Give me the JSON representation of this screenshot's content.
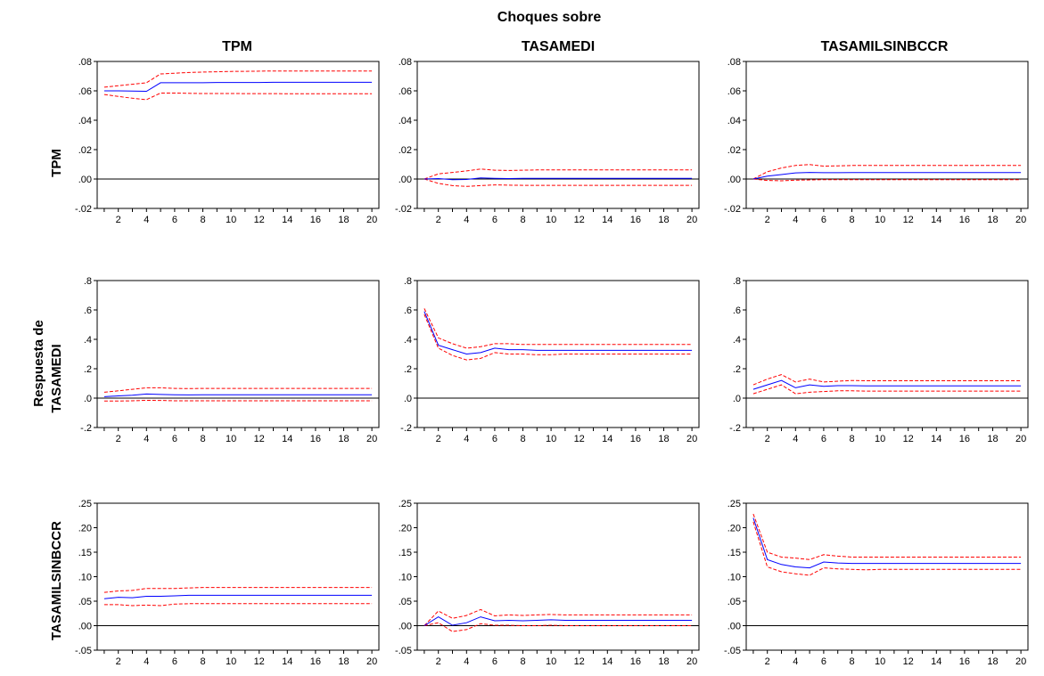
{
  "header": {
    "top_title": "Choques sobre",
    "col_titles": [
      "TPM",
      "TASAMEDI",
      "TASAMILSINBCCR"
    ],
    "row_group_label": "Respuesta de",
    "row_labels": [
      "TPM",
      "TASAMEDI",
      "TASAMILSINBCCR"
    ]
  },
  "colors": {
    "response": "#0000ff",
    "bands": "#ff0000",
    "zero_line": "#000000",
    "frame": "#000000"
  },
  "chart_data": {
    "type": "line",
    "x": [
      1,
      2,
      3,
      4,
      5,
      6,
      7,
      8,
      9,
      10,
      11,
      12,
      13,
      14,
      15,
      16,
      17,
      18,
      19,
      20
    ],
    "x_tick_labels": [
      "2",
      "4",
      "6",
      "8",
      "10",
      "12",
      "14",
      "16",
      "18",
      "20"
    ],
    "rows": [
      {
        "response_of": "TPM",
        "ylim": [
          -0.02,
          0.08
        ],
        "y_ticks": [
          -0.02,
          0.0,
          0.02,
          0.04,
          0.06,
          0.08
        ],
        "y_tick_labels": [
          "-.02",
          ".00",
          ".02",
          ".04",
          ".06",
          ".08"
        ],
        "panels": [
          {
            "shock": "TPM",
            "response": [
              0.06,
              0.06,
              0.0598,
              0.0597,
              0.0655,
              0.0655,
              0.0655,
              0.0655,
              0.0657,
              0.0657,
              0.0657,
              0.0657,
              0.0658,
              0.0658,
              0.0658,
              0.0658,
              0.0658,
              0.0658,
              0.0658,
              0.0658
            ],
            "upper": [
              0.0625,
              0.0635,
              0.0645,
              0.0655,
              0.0715,
              0.072,
              0.0725,
              0.0728,
              0.073,
              0.0732,
              0.0733,
              0.0734,
              0.0735,
              0.0735,
              0.0735,
              0.0735,
              0.0735,
              0.0735,
              0.0735,
              0.0735
            ],
            "lower": [
              0.0575,
              0.0562,
              0.055,
              0.054,
              0.0585,
              0.0585,
              0.0583,
              0.0582,
              0.0582,
              0.0582,
              0.0581,
              0.0581,
              0.0581,
              0.058,
              0.058,
              0.058,
              0.058,
              0.058,
              0.058,
              0.058
            ]
          },
          {
            "shock": "TASAMEDI",
            "response": [
              0.0,
              0.0003,
              -0.0005,
              -0.0003,
              0.0008,
              0.0005,
              0.0003,
              0.0004,
              0.0005,
              0.0005,
              0.0005,
              0.0005,
              0.0005,
              0.0005,
              0.0005,
              0.0005,
              0.0005,
              0.0005,
              0.0005,
              0.0005
            ],
            "upper": [
              0.0,
              0.0035,
              0.0045,
              0.0055,
              0.0068,
              0.006,
              0.0058,
              0.006,
              0.0062,
              0.0062,
              0.0062,
              0.0062,
              0.0062,
              0.0062,
              0.0062,
              0.0062,
              0.0062,
              0.0062,
              0.0062,
              0.0062
            ],
            "lower": [
              0.0,
              -0.003,
              -0.0045,
              -0.005,
              -0.0045,
              -0.004,
              -0.0042,
              -0.0043,
              -0.0043,
              -0.0043,
              -0.0043,
              -0.0043,
              -0.0043,
              -0.0043,
              -0.0043,
              -0.0043,
              -0.0043,
              -0.0043,
              -0.0043,
              -0.0043
            ]
          },
          {
            "shock": "TASAMILSINBCCR",
            "response": [
              0.0,
              0.002,
              0.003,
              0.0042,
              0.0045,
              0.0043,
              0.0043,
              0.0044,
              0.0044,
              0.0044,
              0.0044,
              0.0044,
              0.0044,
              0.0044,
              0.0044,
              0.0044,
              0.0044,
              0.0044,
              0.0044,
              0.0044
            ],
            "upper": [
              0.0,
              0.005,
              0.0075,
              0.0092,
              0.0098,
              0.0088,
              0.009,
              0.0092,
              0.0093,
              0.0093,
              0.0093,
              0.0093,
              0.0093,
              0.0093,
              0.0093,
              0.0093,
              0.0093,
              0.0093,
              0.0093,
              0.0093
            ],
            "lower": [
              0.0,
              -0.001,
              -0.0012,
              -0.0008,
              -0.0006,
              -0.0004,
              -0.0004,
              -0.0004,
              -0.0004,
              -0.0004,
              -0.0004,
              -0.0004,
              -0.0004,
              -0.0004,
              -0.0004,
              -0.0004,
              -0.0004,
              -0.0004,
              -0.0004,
              -0.0004
            ]
          }
        ]
      },
      {
        "response_of": "TASAMEDI",
        "ylim": [
          -0.2,
          0.8
        ],
        "y_ticks": [
          -0.2,
          0.0,
          0.2,
          0.4,
          0.6,
          0.8
        ],
        "y_tick_labels": [
          "-.2",
          ".0",
          ".2",
          ".4",
          ".6",
          ".8"
        ],
        "panels": [
          {
            "shock": "TPM",
            "response": [
              0.01,
              0.015,
              0.02,
              0.028,
              0.025,
              0.023,
              0.022,
              0.023,
              0.023,
              0.023,
              0.023,
              0.023,
              0.023,
              0.023,
              0.023,
              0.023,
              0.023,
              0.023,
              0.023,
              0.023
            ],
            "upper": [
              0.04,
              0.05,
              0.06,
              0.07,
              0.07,
              0.066,
              0.065,
              0.066,
              0.066,
              0.066,
              0.066,
              0.066,
              0.066,
              0.066,
              0.066,
              0.066,
              0.066,
              0.066,
              0.066,
              0.066
            ],
            "lower": [
              -0.02,
              -0.02,
              -0.018,
              -0.015,
              -0.016,
              -0.018,
              -0.018,
              -0.018,
              -0.018,
              -0.018,
              -0.018,
              -0.018,
              -0.018,
              -0.018,
              -0.018,
              -0.018,
              -0.018,
              -0.018,
              -0.018,
              -0.018
            ]
          },
          {
            "shock": "TASAMEDI",
            "response": [
              0.59,
              0.36,
              0.33,
              0.3,
              0.31,
              0.34,
              0.33,
              0.33,
              0.325,
              0.325,
              0.325,
              0.325,
              0.325,
              0.325,
              0.325,
              0.325,
              0.325,
              0.325,
              0.325,
              0.325
            ],
            "upper": [
              0.61,
              0.41,
              0.37,
              0.34,
              0.35,
              0.37,
              0.37,
              0.365,
              0.365,
              0.365,
              0.365,
              0.365,
              0.365,
              0.365,
              0.365,
              0.365,
              0.365,
              0.365,
              0.365,
              0.365
            ],
            "lower": [
              0.57,
              0.34,
              0.29,
              0.26,
              0.27,
              0.31,
              0.3,
              0.3,
              0.295,
              0.295,
              0.3,
              0.3,
              0.3,
              0.3,
              0.3,
              0.3,
              0.3,
              0.3,
              0.3,
              0.3
            ]
          },
          {
            "shock": "TASAMILSINBCCR",
            "response": [
              0.06,
              0.09,
              0.12,
              0.07,
              0.09,
              0.08,
              0.085,
              0.085,
              0.083,
              0.083,
              0.083,
              0.083,
              0.083,
              0.083,
              0.083,
              0.083,
              0.083,
              0.083,
              0.083,
              0.083
            ],
            "upper": [
              0.09,
              0.13,
              0.16,
              0.11,
              0.13,
              0.11,
              0.115,
              0.12,
              0.118,
              0.118,
              0.118,
              0.118,
              0.118,
              0.118,
              0.118,
              0.118,
              0.118,
              0.118,
              0.118,
              0.118
            ],
            "lower": [
              0.03,
              0.06,
              0.09,
              0.03,
              0.04,
              0.045,
              0.05,
              0.05,
              0.048,
              0.048,
              0.048,
              0.048,
              0.048,
              0.048,
              0.048,
              0.048,
              0.048,
              0.048,
              0.048,
              0.048
            ]
          }
        ]
      },
      {
        "response_of": "TASAMILSINBCCR",
        "ylim": [
          -0.05,
          0.25
        ],
        "y_ticks": [
          -0.05,
          0.0,
          0.05,
          0.1,
          0.15,
          0.2,
          0.25
        ],
        "y_tick_labels": [
          "-.05",
          ".00",
          ".05",
          ".10",
          ".15",
          ".20",
          ".25"
        ],
        "panels": [
          {
            "shock": "TPM",
            "response": [
              0.055,
              0.058,
              0.057,
              0.06,
              0.06,
              0.061,
              0.062,
              0.062,
              0.062,
              0.062,
              0.062,
              0.062,
              0.062,
              0.062,
              0.062,
              0.062,
              0.062,
              0.062,
              0.062,
              0.062
            ],
            "upper": [
              0.068,
              0.071,
              0.072,
              0.076,
              0.076,
              0.076,
              0.077,
              0.078,
              0.078,
              0.078,
              0.078,
              0.078,
              0.078,
              0.078,
              0.078,
              0.078,
              0.078,
              0.078,
              0.078,
              0.078
            ],
            "lower": [
              0.043,
              0.043,
              0.041,
              0.042,
              0.041,
              0.044,
              0.045,
              0.045,
              0.045,
              0.045,
              0.045,
              0.045,
              0.045,
              0.045,
              0.045,
              0.045,
              0.045,
              0.045,
              0.045,
              0.045
            ]
          },
          {
            "shock": "TASAMEDI",
            "response": [
              0.0,
              0.018,
              0.001,
              0.006,
              0.018,
              0.01,
              0.011,
              0.01,
              0.011,
              0.012,
              0.011,
              0.011,
              0.011,
              0.011,
              0.011,
              0.011,
              0.011,
              0.011,
              0.011,
              0.011
            ],
            "upper": [
              0.0,
              0.03,
              0.015,
              0.021,
              0.033,
              0.02,
              0.022,
              0.021,
              0.022,
              0.023,
              0.022,
              0.022,
              0.022,
              0.022,
              0.022,
              0.022,
              0.022,
              0.022,
              0.022,
              0.022
            ],
            "lower": [
              0.0,
              0.006,
              -0.012,
              -0.008,
              0.004,
              0.001,
              0.001,
              0.0,
              0.0,
              0.001,
              0.0,
              0.0,
              0.0,
              0.0,
              0.0,
              0.0,
              0.0,
              0.0,
              0.0,
              0.0
            ]
          },
          {
            "shock": "TASAMILSINBCCR",
            "response": [
              0.22,
              0.135,
              0.125,
              0.12,
              0.118,
              0.13,
              0.128,
              0.127,
              0.127,
              0.127,
              0.127,
              0.127,
              0.127,
              0.127,
              0.127,
              0.127,
              0.127,
              0.127,
              0.127,
              0.127
            ],
            "upper": [
              0.228,
              0.15,
              0.14,
              0.138,
              0.135,
              0.145,
              0.142,
              0.14,
              0.14,
              0.14,
              0.14,
              0.14,
              0.14,
              0.14,
              0.14,
              0.14,
              0.14,
              0.14,
              0.14,
              0.14
            ],
            "lower": [
              0.212,
              0.12,
              0.11,
              0.106,
              0.103,
              0.118,
              0.116,
              0.115,
              0.114,
              0.115,
              0.115,
              0.115,
              0.115,
              0.115,
              0.115,
              0.115,
              0.115,
              0.115,
              0.115,
              0.115
            ]
          }
        ]
      }
    ]
  }
}
